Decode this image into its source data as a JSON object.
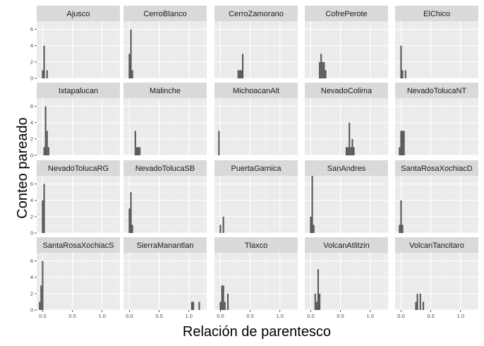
{
  "chart_data": {
    "type": "bar",
    "subtype": "faceted-histogram",
    "title": "",
    "xlabel": "Relación de parentesco",
    "ylabel": "Conteo pareado",
    "xlim": [
      -0.1,
      1.3
    ],
    "ylim": [
      0,
      7
    ],
    "x_ticks": [
      0,
      0.5,
      1.0
    ],
    "x_tick_labels": [
      "0.0",
      "0.5",
      "1.0"
    ],
    "y_ticks": [
      0,
      2,
      4,
      6
    ],
    "y_tick_labels": [
      "0",
      "2",
      "4",
      "6"
    ],
    "grid": true,
    "legend": "none",
    "bar_color": "#595959",
    "panel_background": "#ebebeb",
    "strip_background": "#d9d9d9",
    "ncol": 5,
    "facets": [
      {
        "name": "Ajusco",
        "bars": [
          {
            "x": 0.0,
            "count": 1
          },
          {
            "x": 0.025,
            "count": 4
          },
          {
            "x": 0.075,
            "count": 1
          }
        ]
      },
      {
        "name": "CerroBlanco",
        "bars": [
          {
            "x": 0.0,
            "count": 3
          },
          {
            "x": 0.025,
            "count": 6
          },
          {
            "x": 0.05,
            "count": 1
          }
        ]
      },
      {
        "name": "CerroZamorano",
        "bars": [
          {
            "x": 0.3,
            "count": 1
          },
          {
            "x": 0.325,
            "count": 1
          },
          {
            "x": 0.35,
            "count": 1
          },
          {
            "x": 0.375,
            "count": 3
          }
        ]
      },
      {
        "name": "CofrePerote",
        "bars": [
          {
            "x": 0.15,
            "count": 2
          },
          {
            "x": 0.175,
            "count": 3
          },
          {
            "x": 0.2,
            "count": 2
          },
          {
            "x": 0.225,
            "count": 2
          },
          {
            "x": 0.25,
            "count": 1
          }
        ]
      },
      {
        "name": "ElChico",
        "bars": [
          {
            "x": 0.0,
            "count": 4
          },
          {
            "x": 0.025,
            "count": 1
          },
          {
            "x": 0.075,
            "count": 1
          }
        ]
      },
      {
        "name": "Ixtapalucan",
        "bars": [
          {
            "x": 0.025,
            "count": 1
          },
          {
            "x": 0.05,
            "count": 6
          },
          {
            "x": 0.075,
            "count": 3
          },
          {
            "x": 0.1,
            "count": 1
          }
        ]
      },
      {
        "name": "Malinche",
        "bars": [
          {
            "x": 0.1,
            "count": 3
          },
          {
            "x": 0.125,
            "count": 1
          },
          {
            "x": 0.15,
            "count": 1
          },
          {
            "x": 0.175,
            "count": 1
          }
        ]
      },
      {
        "name": "MichoacanAlt",
        "bars": [
          {
            "x": -0.025,
            "count": 3
          }
        ]
      },
      {
        "name": "NevadoColima",
        "bars": [
          {
            "x": 0.6,
            "count": 1
          },
          {
            "x": 0.625,
            "count": 1
          },
          {
            "x": 0.65,
            "count": 4
          },
          {
            "x": 0.675,
            "count": 1
          },
          {
            "x": 0.7,
            "count": 2
          },
          {
            "x": 0.725,
            "count": 1
          }
        ]
      },
      {
        "name": "NevadoTolucaNT",
        "bars": [
          {
            "x": -0.025,
            "count": 1
          },
          {
            "x": 0.0,
            "count": 3
          },
          {
            "x": 0.025,
            "count": 3
          },
          {
            "x": 0.05,
            "count": 3
          }
        ]
      },
      {
        "name": "NevadoTolucaRG",
        "bars": [
          {
            "x": 0.0,
            "count": 4
          },
          {
            "x": 0.025,
            "count": 6
          }
        ]
      },
      {
        "name": "NevadoTolucaSB",
        "bars": [
          {
            "x": 0.0,
            "count": 3
          },
          {
            "x": 0.025,
            "count": 5
          },
          {
            "x": 0.05,
            "count": 1
          }
        ]
      },
      {
        "name": "PuertaGarnica",
        "bars": [
          {
            "x": 0.0,
            "count": 1
          },
          {
            "x": 0.05,
            "count": 2
          }
        ]
      },
      {
        "name": "SanAndres",
        "bars": [
          {
            "x": 0.0,
            "count": 2
          },
          {
            "x": 0.025,
            "count": 7
          },
          {
            "x": 0.05,
            "count": 1
          }
        ]
      },
      {
        "name": "SantaRosaXochiacD",
        "bars": [
          {
            "x": -0.025,
            "count": 1
          },
          {
            "x": 0.0,
            "count": 4
          },
          {
            "x": 0.025,
            "count": 1
          }
        ]
      },
      {
        "name": "SantaRosaXochiacS",
        "bars": [
          {
            "x": -0.05,
            "count": 1
          },
          {
            "x": -0.025,
            "count": 3
          },
          {
            "x": 0.0,
            "count": 6
          }
        ]
      },
      {
        "name": "SierraManantlan",
        "bars": [
          {
            "x": 1.05,
            "count": 1
          },
          {
            "x": 1.075,
            "count": 1
          },
          {
            "x": 1.175,
            "count": 1
          }
        ]
      },
      {
        "name": "Tlaxco",
        "bars": [
          {
            "x": 0.0,
            "count": 1
          },
          {
            "x": 0.025,
            "count": 3
          },
          {
            "x": 0.05,
            "count": 3
          },
          {
            "x": 0.075,
            "count": 1
          },
          {
            "x": 0.125,
            "count": 2
          }
        ]
      },
      {
        "name": "VolcanAtlitzin",
        "bars": [
          {
            "x": 0.075,
            "count": 2
          },
          {
            "x": 0.1,
            "count": 1
          },
          {
            "x": 0.125,
            "count": 5
          },
          {
            "x": 0.15,
            "count": 2
          }
        ]
      },
      {
        "name": "VolcanTancitaro",
        "bars": [
          {
            "x": 0.25,
            "count": 1
          },
          {
            "x": 0.275,
            "count": 2
          },
          {
            "x": 0.325,
            "count": 2
          },
          {
            "x": 0.375,
            "count": 1
          }
        ]
      }
    ]
  }
}
